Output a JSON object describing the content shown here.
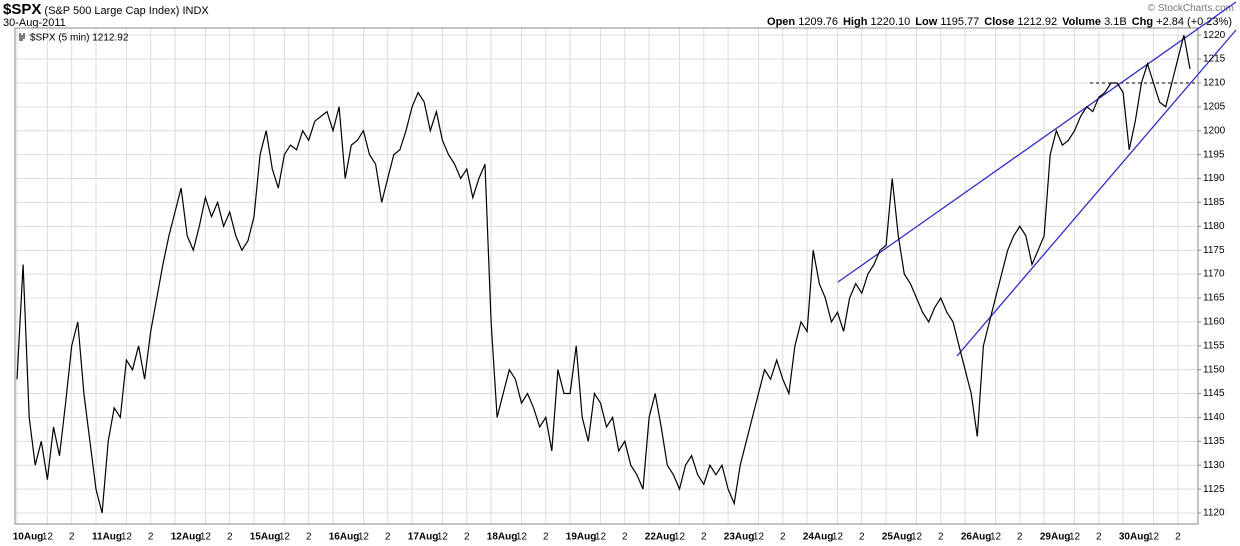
{
  "header": {
    "symbol": "$SPX",
    "name": "(S&P 500 Large Cap Index)",
    "exchange": "INDX",
    "date": "30-Aug-2011",
    "credit": "© StockCharts.com",
    "stats": [
      {
        "label": "Open",
        "value": "1209.76"
      },
      {
        "label": "High",
        "value": "1220.10"
      },
      {
        "label": "Low",
        "value": "1195.77"
      },
      {
        "label": "Close",
        "value": "1212.92"
      },
      {
        "label": "Volume",
        "value": "3.1B"
      },
      {
        "label": "Chg",
        "value": "+2.84 (+0.23%)"
      }
    ]
  },
  "chart_data": {
    "type": "line",
    "grid": true,
    "categories": [
      "10Aug",
      null,
      null,
      null,
      null,
      "12",
      null,
      null,
      null,
      "2",
      null,
      null,
      null,
      "11Aug",
      null,
      null,
      null,
      null,
      "12",
      null,
      null,
      null,
      "2",
      null,
      null,
      null,
      "12Aug",
      null,
      null,
      null,
      null,
      "12",
      null,
      null,
      null,
      "2",
      null,
      null,
      null,
      "15Aug",
      null,
      null,
      null,
      null,
      "12",
      null,
      null,
      null,
      "2",
      null,
      null,
      null,
      "16Aug",
      null,
      null,
      null,
      null,
      "12",
      null,
      null,
      null,
      "2",
      null,
      null,
      null,
      "17Aug",
      null,
      null,
      null,
      null,
      "12",
      null,
      null,
      null,
      "2",
      null,
      null,
      null,
      "18Aug",
      null,
      null,
      null,
      null,
      "12",
      null,
      null,
      null,
      "2",
      null,
      null,
      null,
      "19Aug",
      null,
      null,
      null,
      null,
      "12",
      null,
      null,
      null,
      "2",
      null,
      null,
      null,
      "22Aug",
      null,
      null,
      null,
      null,
      "12",
      null,
      null,
      null,
      "2",
      null,
      null,
      null,
      "23Aug",
      null,
      null,
      null,
      null,
      "12",
      null,
      null,
      null,
      "2",
      null,
      null,
      null,
      "24Aug",
      null,
      null,
      null,
      null,
      "12",
      null,
      null,
      null,
      "2",
      null,
      null,
      null,
      "25Aug",
      null,
      null,
      null,
      null,
      "12",
      null,
      null,
      null,
      "2",
      null,
      null,
      null,
      "26Aug",
      null,
      null,
      null,
      null,
      "12",
      null,
      null,
      null,
      "2",
      null,
      null,
      null,
      "29Aug",
      null,
      null,
      null,
      null,
      "12",
      null,
      null,
      null,
      "2",
      null,
      null,
      null,
      "30Aug",
      null,
      null,
      null,
      null,
      "12",
      null,
      null,
      null,
      "2",
      null,
      null
    ],
    "series": [
      {
        "name": "$SPX (5 min) 1212.92",
        "color": "#000000",
        "values": [
          1148,
          1172,
          1140,
          1130,
          1135,
          1127,
          1138,
          1132,
          1143,
          1155,
          1160,
          1145,
          1135,
          1125,
          1120,
          1135,
          1142,
          1140,
          1152,
          1150,
          1155,
          1148,
          1158,
          1165,
          1172,
          1178,
          1183,
          1188,
          1178,
          1175,
          1180,
          1186,
          1182,
          1185,
          1180,
          1183,
          1178,
          1175,
          1177,
          1182,
          1195,
          1200,
          1192,
          1188,
          1195,
          1197,
          1196,
          1200,
          1198,
          1202,
          1203,
          1204,
          1200,
          1205,
          1190,
          1197,
          1198,
          1200,
          1195,
          1193,
          1185,
          1190,
          1195,
          1196,
          1200,
          1205,
          1208,
          1206,
          1200,
          1204,
          1198,
          1195,
          1193,
          1190,
          1192,
          1186,
          1190,
          1193,
          1160,
          1140,
          1145,
          1150,
          1148,
          1143,
          1145,
          1142,
          1138,
          1140,
          1133,
          1150,
          1145,
          1145,
          1155,
          1140,
          1135,
          1145,
          1143,
          1138,
          1140,
          1133,
          1135,
          1130,
          1128,
          1125,
          1140,
          1145,
          1138,
          1130,
          1128,
          1125,
          1130,
          1132,
          1128,
          1126,
          1130,
          1128,
          1130,
          1125,
          1122,
          1130,
          1135,
          1140,
          1145,
          1150,
          1148,
          1152,
          1148,
          1145,
          1155,
          1160,
          1158,
          1175,
          1168,
          1165,
          1160,
          1162,
          1158,
          1165,
          1168,
          1166,
          1170,
          1172,
          1175,
          1176,
          1190,
          1178,
          1170,
          1168,
          1165,
          1162,
          1160,
          1163,
          1165,
          1162,
          1160,
          1155,
          1150,
          1145,
          1136,
          1155,
          1160,
          1165,
          1170,
          1175,
          1178,
          1180,
          1178,
          1172,
          1175,
          1178,
          1195,
          1200,
          1197,
          1198,
          1200,
          1203,
          1205,
          1204,
          1207,
          1208,
          1210,
          1210,
          1208,
          1196,
          1202,
          1210,
          1214,
          1210,
          1206,
          1205,
          1210,
          1215,
          1220,
          1212.92
        ]
      }
    ],
    "ylim": [
      1117.7,
      1221.5
    ],
    "yticks": [
      1120,
      1125,
      1130,
      1135,
      1140,
      1145,
      1150,
      1155,
      1160,
      1165,
      1170,
      1175,
      1180,
      1185,
      1190,
      1195,
      1200,
      1205,
      1210,
      1215,
      1220
    ]
  }
}
